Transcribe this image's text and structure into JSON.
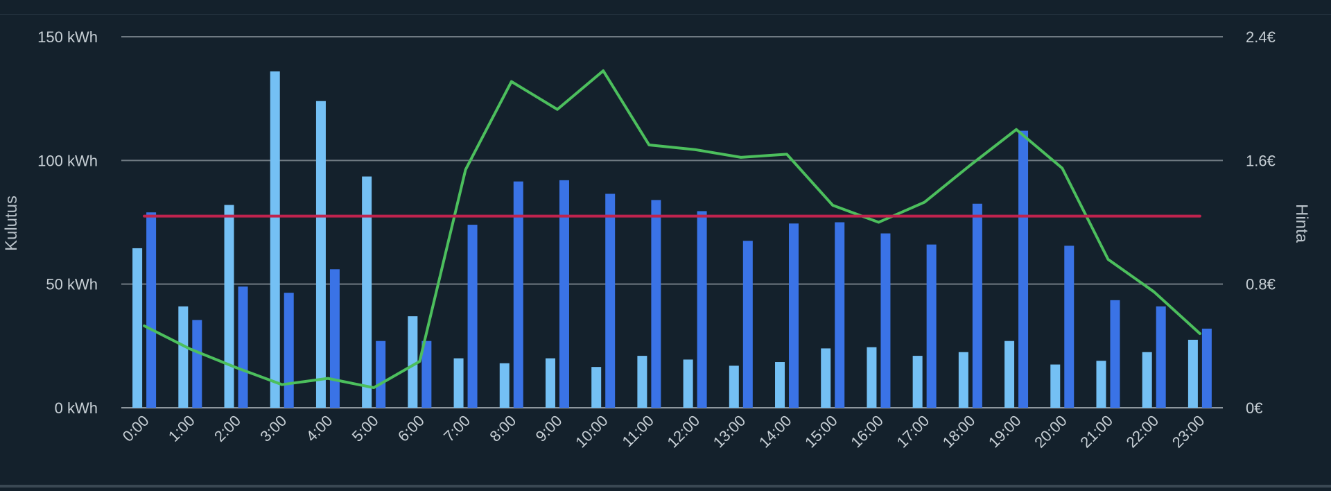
{
  "chart_data": {
    "type": "bar",
    "categories": [
      "0:00",
      "1:00",
      "2:00",
      "3:00",
      "4:00",
      "5:00",
      "6:00",
      "7:00",
      "8:00",
      "9:00",
      "10:00",
      "11:00",
      "12:00",
      "13:00",
      "14:00",
      "15:00",
      "16:00",
      "17:00",
      "18:00",
      "19:00",
      "20:00",
      "21:00",
      "22:00",
      "23:00"
    ],
    "series": [
      {
        "values": [
          64.5,
          41,
          82,
          136,
          124,
          93.5,
          37,
          20,
          18,
          20,
          16.5,
          21,
          19.5,
          17,
          18.5,
          24,
          24.5,
          21,
          22.5,
          27,
          17.5,
          19,
          22.5,
          27.5
        ],
        "color": "#74c0f4",
        "axis": "left"
      },
      {
        "values": [
          79,
          35.5,
          49,
          46.5,
          56,
          27,
          27,
          74,
          91.5,
          92,
          86.5,
          84,
          79.5,
          67.5,
          74.5,
          75,
          70.5,
          66,
          82.5,
          112,
          65.5,
          43.5,
          41,
          32
        ],
        "color": "#3a73e6",
        "axis": "left"
      },
      {
        "type": "line",
        "values": [
          0.53,
          0.38,
          0.26,
          0.15,
          0.19,
          0.13,
          0.3,
          1.54,
          2.11,
          1.93,
          2.18,
          1.7,
          1.67,
          1.62,
          1.64,
          1.31,
          1.2,
          1.33,
          1.57,
          1.8,
          1.55,
          0.96,
          0.75,
          0.48
        ],
        "color": "#4cbf5d",
        "axis": "right"
      },
      {
        "type": "line",
        "values": [
          1.24,
          1.24,
          1.24,
          1.24,
          1.24,
          1.24,
          1.24,
          1.24,
          1.24,
          1.24,
          1.24,
          1.24,
          1.24,
          1.24,
          1.24,
          1.24,
          1.24,
          1.24,
          1.24,
          1.24,
          1.24,
          1.24,
          1.24,
          1.24
        ],
        "color": "#c0234e",
        "axis": "right"
      }
    ],
    "ylabel": "Kulutus",
    "y2label": "Hinta",
    "ylim": [
      0,
      150
    ],
    "y2lim": [
      0,
      2.4
    ],
    "yticks": [
      "0 kWh",
      "50 kWh",
      "100 kWh",
      "150 kWh"
    ],
    "y2ticks": [
      "0€",
      "0.8€",
      "1.6€",
      "2.4€"
    ],
    "grid": true
  }
}
